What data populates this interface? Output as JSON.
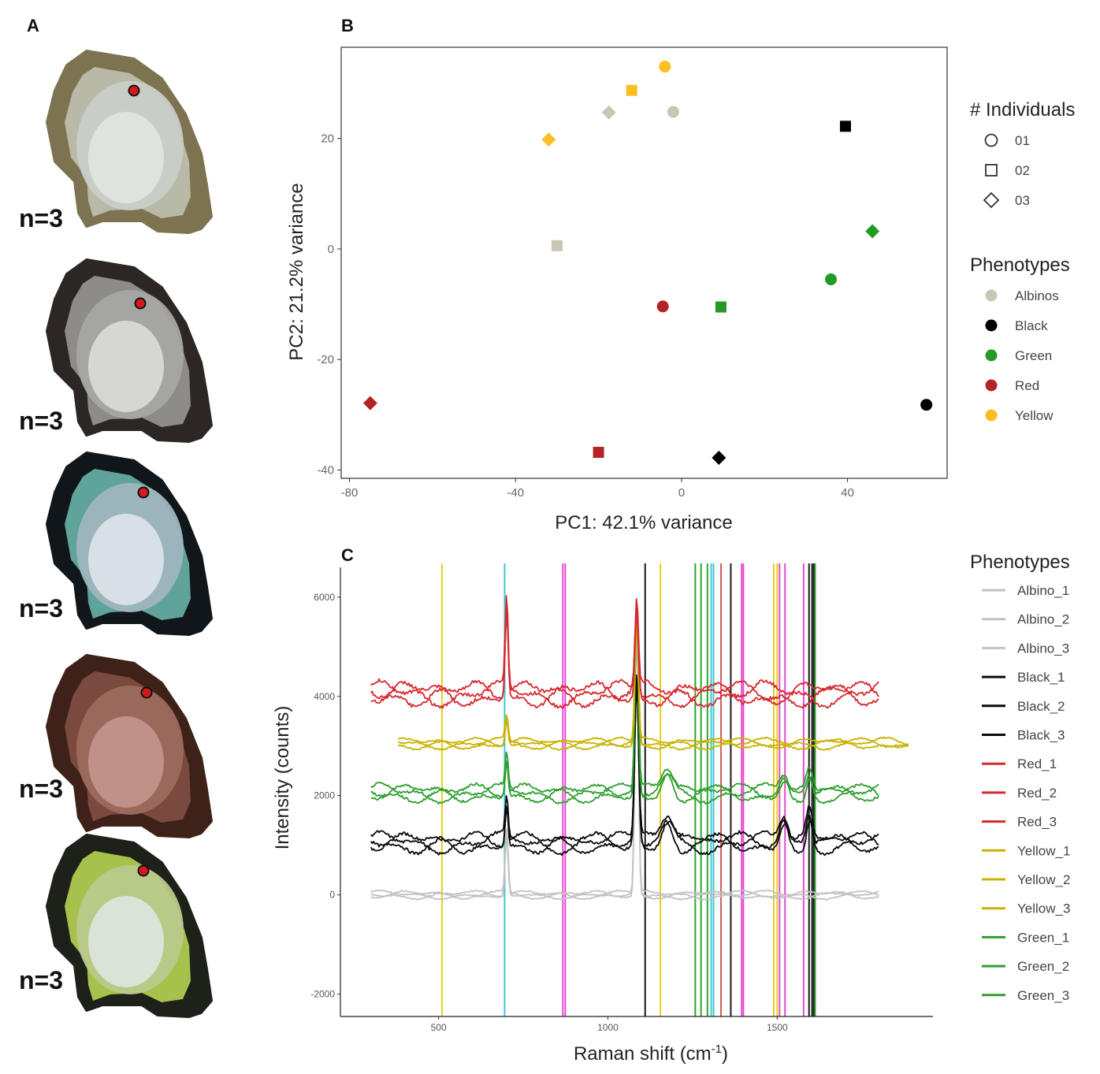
{
  "panel_labels": {
    "a": "A",
    "b": "B",
    "c": "C"
  },
  "shells": [
    {
      "label": "n=3",
      "rim": "#7e7350",
      "nacre": "#c9cdc8",
      "inner": "#e3e6e2",
      "tint": "#b8b9a6"
    },
    {
      "label": "n=3",
      "rim": "#2c2624",
      "nacre": "#a6a8a5",
      "inner": "#dedfdc",
      "tint": "#8d8c88"
    },
    {
      "label": "n=3",
      "rim": "#10161a",
      "nacre": "#9fb6be",
      "inner": "#e0e8ec",
      "tint": "#5fa39a"
    },
    {
      "label": "n=3",
      "rim": "#3e221a",
      "nacre": "#9d6a5e",
      "inner": "#c7998f",
      "tint": "#7a4a3e"
    },
    {
      "label": "n=3",
      "rim": "#1e201a",
      "nacre": "#b9c98a",
      "inner": "#dfe7e4",
      "tint": "#a7c24c"
    }
  ],
  "colors": {
    "Albinos": "#c9c6b4",
    "Black": "#000000",
    "Green": "#239b22",
    "Red": "#b42326",
    "Yellow": "#fbbf22",
    "spec_red": "#d6282f",
    "spec_yellow": "#c9b300",
    "spec_green": "#2f9e2f",
    "spec_black": "#0a0a0a",
    "spec_grey": "#c2c2c2"
  },
  "chart_data": [
    {
      "type": "scatter",
      "title": "",
      "xlabel": "PC1: 42.1% variance",
      "ylabel": "PC2: 21.2% variance",
      "xlim": [
        -82,
        64
      ],
      "ylim": [
        -41.5,
        36.5
      ],
      "xticks": [
        -80,
        -40,
        0,
        40
      ],
      "yticks": [
        20,
        0,
        -20,
        -40
      ],
      "legend_shape_title": "# Individuals",
      "legend_shapes": [
        {
          "label": "01",
          "shape": "circle"
        },
        {
          "label": "02",
          "shape": "square"
        },
        {
          "label": "03",
          "shape": "diamond"
        }
      ],
      "legend_color_title": "Phenotypes",
      "legend_colors": [
        "Albinos",
        "Black",
        "Green",
        "Red",
        "Yellow"
      ],
      "points": [
        {
          "group": "Yellow",
          "shape": "circle",
          "x": -4,
          "y": 33
        },
        {
          "group": "Yellow",
          "shape": "square",
          "x": -12,
          "y": 28.7
        },
        {
          "group": "Yellow",
          "shape": "diamond",
          "x": -32,
          "y": 19.8
        },
        {
          "group": "Albinos",
          "shape": "circle",
          "x": -2,
          "y": 24.8
        },
        {
          "group": "Albinos",
          "shape": "diamond",
          "x": -17.5,
          "y": 24.7
        },
        {
          "group": "Albinos",
          "shape": "square",
          "x": -30,
          "y": 0.6
        },
        {
          "group": "Black",
          "shape": "square",
          "x": 39.5,
          "y": 22.2
        },
        {
          "group": "Black",
          "shape": "circle",
          "x": 59,
          "y": -28.2
        },
        {
          "group": "Black",
          "shape": "diamond",
          "x": 9,
          "y": -37.8
        },
        {
          "group": "Green",
          "shape": "diamond",
          "x": 46,
          "y": 3.2
        },
        {
          "group": "Green",
          "shape": "circle",
          "x": 36,
          "y": -5.5
        },
        {
          "group": "Green",
          "shape": "square",
          "x": 9.5,
          "y": -10.5
        },
        {
          "group": "Red",
          "shape": "circle",
          "x": -4.5,
          "y": -10.4
        },
        {
          "group": "Red",
          "shape": "diamond",
          "x": -75,
          "y": -27.9
        },
        {
          "group": "Red",
          "shape": "square",
          "x": -20,
          "y": -36.8
        }
      ]
    },
    {
      "type": "line",
      "title": "",
      "xlabel": "Raman shift (cm",
      "xlabel_sup": "-1",
      "xlabel_suffix": ")",
      "ylabel": "Intensity (counts)",
      "xlim": [
        210,
        1960
      ],
      "ylim": [
        -2450,
        6600
      ],
      "xticks": [
        500,
        1000,
        1500
      ],
      "yticks": [
        6000,
        4000,
        2000,
        0,
        -2000
      ],
      "legend_title": "Phenotypes",
      "legend": [
        {
          "label": "Albino_1",
          "color": "spec_grey"
        },
        {
          "label": "Albino_2",
          "color": "spec_grey"
        },
        {
          "label": "Albino_3",
          "color": "spec_grey"
        },
        {
          "label": "Black_1",
          "color": "spec_black"
        },
        {
          "label": "Black_2",
          "color": "spec_black"
        },
        {
          "label": "Black_3",
          "color": "spec_black"
        },
        {
          "label": "Red_1",
          "color": "spec_red"
        },
        {
          "label": "Red_2",
          "color": "spec_red"
        },
        {
          "label": "Red_3",
          "color": "spec_red"
        },
        {
          "label": "Yellow_1",
          "color": "spec_yellow"
        },
        {
          "label": "Yellow_2",
          "color": "spec_yellow"
        },
        {
          "label": "Yellow_3",
          "color": "spec_yellow"
        },
        {
          "label": "Green_1",
          "color": "spec_green"
        },
        {
          "label": "Green_2",
          "color": "spec_green"
        },
        {
          "label": "Green_3",
          "color": "spec_green"
        }
      ],
      "series": [
        {
          "name": "Albino",
          "color": "spec_grey",
          "x_range": [
            300,
            1800
          ],
          "baseline": 0,
          "bump_scale": 60,
          "peaks": [
            [
              701,
              1300,
              6
            ],
            [
              1085,
              5800,
              7
            ]
          ]
        },
        {
          "name": "Black",
          "color": "spec_black",
          "x_range": [
            300,
            1800
          ],
          "baseline": 1050,
          "bump_scale": 150,
          "peaks": [
            [
              701,
              800,
              6
            ],
            [
              1085,
              3300,
              8
            ],
            [
              1175,
              500,
              25
            ],
            [
              1520,
              500,
              18
            ],
            [
              1595,
              600,
              12
            ]
          ]
        },
        {
          "name": "Green",
          "color": "spec_green",
          "x_range": [
            300,
            1800
          ],
          "baseline": 2050,
          "bump_scale": 130,
          "peaks": [
            [
              701,
              700,
              6
            ],
            [
              1085,
              3800,
              7
            ],
            [
              1175,
              450,
              25
            ],
            [
              1520,
              350,
              18
            ],
            [
              1595,
              400,
              12
            ]
          ]
        },
        {
          "name": "Yellow",
          "color": "spec_yellow",
          "x_range": [
            380,
            1890
          ],
          "baseline": 3050,
          "bump_scale": 80,
          "peaks": [
            [
              701,
              500,
              6
            ],
            [
              1085,
              2600,
              7
            ]
          ]
        },
        {
          "name": "Red",
          "color": "spec_red",
          "x_range": [
            300,
            1800
          ],
          "baseline": 4050,
          "bump_scale": 180,
          "peaks": [
            [
              701,
              1800,
              6
            ],
            [
              1085,
              1800,
              7
            ]
          ]
        }
      ],
      "vlines": [
        {
          "x": 510,
          "color": "#e6cf1a"
        },
        {
          "x": 695,
          "color": "#3ec7d2"
        },
        {
          "x": 867,
          "color": "#e54bd2"
        },
        {
          "x": 874,
          "color": "#e54bd2"
        },
        {
          "x": 1110,
          "color": "#1a1a1a"
        },
        {
          "x": 1155,
          "color": "#e6cf1a"
        },
        {
          "x": 1258,
          "color": "#2ea52e"
        },
        {
          "x": 1275,
          "color": "#2ea52e"
        },
        {
          "x": 1294,
          "color": "#2ea52e"
        },
        {
          "x": 1305,
          "color": "#3ec7d2"
        },
        {
          "x": 1312,
          "color": "#3ec7d2"
        },
        {
          "x": 1334,
          "color": "#d0605a"
        },
        {
          "x": 1363,
          "color": "#1a1a1a"
        },
        {
          "x": 1395,
          "color": "#e54bd2"
        },
        {
          "x": 1400,
          "color": "#e54bd2"
        },
        {
          "x": 1490,
          "color": "#e6cf1a"
        },
        {
          "x": 1500,
          "color": "#e6cf1a"
        },
        {
          "x": 1507,
          "color": "#e54bd2"
        },
        {
          "x": 1523,
          "color": "#e54bd2"
        },
        {
          "x": 1578,
          "color": "#e54bd2"
        },
        {
          "x": 1594,
          "color": "#1a1a1a"
        },
        {
          "x": 1603,
          "color": "#1a1a1a"
        },
        {
          "x": 1608,
          "color": "#1a1a1a"
        },
        {
          "x": 1612,
          "color": "#2ea52e"
        }
      ]
    }
  ]
}
